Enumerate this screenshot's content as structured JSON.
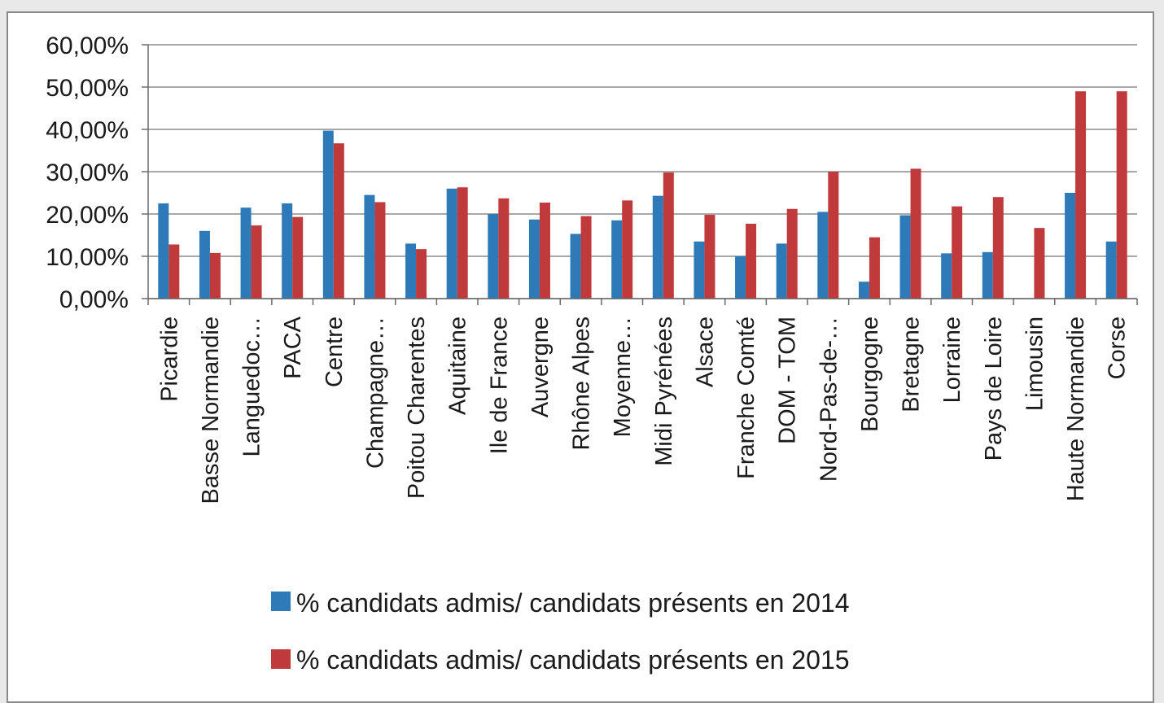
{
  "chart_data": {
    "type": "bar",
    "categories": [
      "Picardie",
      "Basse Normandie",
      "Languedoc…",
      "PACA",
      "Centre",
      "Champagne…",
      "Poitou Charentes",
      "Aquitaine",
      "Ile de France",
      "Auvergne",
      "Rhône Alpes",
      "Moyenne…",
      "Midi Pyrénées",
      "Alsace",
      "Franche Comté",
      "DOM - TOM",
      "Nord-Pas-de-…",
      "Bourgogne",
      "Bretagne",
      "Lorraine",
      "Pays de Loire",
      "Limousin",
      "Haute Normandie",
      "Corse"
    ],
    "series": [
      {
        "name": "% candidats admis/ candidats présents en 2014",
        "color": "#2e7ab8",
        "values": [
          22.5,
          16,
          21.5,
          22.5,
          39.7,
          24.5,
          13,
          26,
          20,
          18.7,
          15.3,
          18.5,
          24.3,
          13.5,
          10,
          13,
          20.5,
          4,
          19.7,
          10.7,
          11,
          0,
          25,
          13.5
        ]
      },
      {
        "name": "% candidats admis/ candidats présents en 2015",
        "color": "#c0393b",
        "values": [
          12.8,
          10.8,
          17.3,
          19.3,
          36.7,
          22.8,
          11.7,
          26.3,
          23.7,
          22.7,
          19.5,
          23.2,
          29.8,
          19.8,
          17.7,
          21.2,
          30,
          14.5,
          30.7,
          21.8,
          24,
          16.7,
          49,
          49
        ]
      }
    ],
    "ylim": [
      0,
      60
    ],
    "y_ticks": [
      "0,00%",
      "10,00%",
      "20,00%",
      "30,00%",
      "40,00%",
      "50,00%",
      "60,00%"
    ],
    "grid": true,
    "legend_position": "bottom"
  }
}
